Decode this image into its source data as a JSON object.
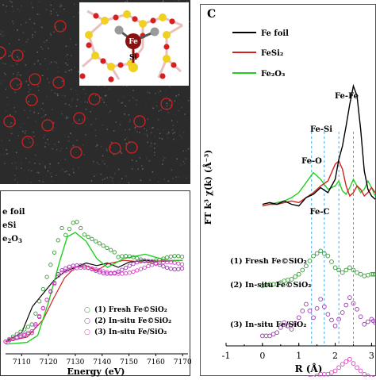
{
  "stem_image": {
    "inset_labels": {
      "fe": "Fe",
      "si": "Si"
    }
  },
  "xanes": {
    "legend_top": [
      "e foil",
      "eSi",
      "e",
      "2",
      "O",
      "3"
    ],
    "legend_bottom": [
      {
        "marker": "○",
        "label": "(1) Fresh Fe©SiO₂",
        "color": "#3a9a3a"
      },
      {
        "marker": "○",
        "label": "(2) In-situ Fe©SiO₂",
        "color": "#9a3ab0"
      },
      {
        "marker": "○",
        "label": "(3) In-situ Fe/SiO₂",
        "color": "#e040c8"
      }
    ],
    "xlabel": "Energy (eV)",
    "xticks": [
      "7110",
      "7120",
      "7130",
      "7140",
      "7150",
      "7160",
      "7170"
    ]
  },
  "chart_data": {
    "type": "line",
    "panel_letter": "C",
    "ylabel": "FT k³ χ(k) (Å⁻³)",
    "xlabel": "R (Å)",
    "xlim": [
      -1,
      3.1
    ],
    "xticks": [
      "-1",
      "0",
      "1",
      "2",
      "3"
    ],
    "legend": [
      {
        "name": "Fe foil",
        "color": "#000000"
      },
      {
        "name": "FeSi₂",
        "color": "#d62020"
      },
      {
        "name": "Fe₂O₃",
        "color": "#20d020"
      }
    ],
    "annotations": [
      "Fe-Fe",
      "Fe-Si",
      "Fe-O",
      "Fe-C"
    ],
    "reference_lines_R": [
      1.35,
      1.7,
      2.1,
      2.5
    ],
    "series": [
      {
        "name": "Fe foil",
        "color": "#000000",
        "offset": 0,
        "style": "line",
        "x": [
          0,
          0.2,
          0.4,
          0.6,
          0.8,
          1.0,
          1.2,
          1.4,
          1.6,
          1.8,
          2.0,
          2.1,
          2.2,
          2.3,
          2.4,
          2.5,
          2.6,
          2.7,
          2.8,
          2.9,
          3.0,
          3.1
        ],
        "y": [
          0.5,
          0.6,
          0.5,
          0.7,
          0.5,
          0.4,
          0.9,
          1.1,
          1.5,
          1.2,
          2.0,
          3.2,
          4.0,
          5.2,
          6.5,
          7.6,
          7.0,
          5.0,
          2.5,
          1.4,
          1.0,
          0.8
        ]
      },
      {
        "name": "FeSi₂",
        "color": "#d62020",
        "offset": 0,
        "style": "line",
        "x": [
          0,
          0.2,
          0.4,
          0.6,
          0.8,
          1.0,
          1.2,
          1.4,
          1.6,
          1.8,
          2.0,
          2.1,
          2.2,
          2.3,
          2.4,
          2.5,
          2.6,
          2.7,
          2.8,
          2.9,
          3.0,
          3.1
        ],
        "y": [
          0.4,
          0.5,
          0.5,
          0.6,
          0.7,
          0.6,
          0.9,
          1.2,
          1.6,
          1.9,
          2.9,
          3.1,
          2.6,
          1.6,
          1.0,
          1.2,
          1.6,
          1.4,
          1.0,
          1.2,
          1.5,
          1.2
        ]
      },
      {
        "name": "Fe₂O₃",
        "color": "#20d020",
        "offset": 0,
        "style": "line",
        "x": [
          0,
          0.2,
          0.4,
          0.6,
          0.8,
          1.0,
          1.2,
          1.4,
          1.6,
          1.8,
          2.0,
          2.1,
          2.2,
          2.3,
          2.4,
          2.5,
          2.6,
          2.7,
          2.8,
          2.9,
          3.0,
          3.1
        ],
        "y": [
          0.4,
          0.5,
          0.6,
          0.7,
          0.9,
          1.2,
          1.8,
          2.4,
          2.0,
          1.4,
          1.6,
          1.9,
          1.3,
          1.1,
          1.5,
          2.0,
          1.6,
          1.2,
          1.4,
          1.9,
          1.5,
          1.0
        ]
      },
      {
        "name": "(1) Fresh Fe©SiO₂",
        "color": "#3a9a3a",
        "offset": -4.6,
        "style": "markers",
        "x": [
          0,
          0.2,
          0.4,
          0.6,
          0.8,
          1.0,
          1.2,
          1.4,
          1.6,
          1.8,
          2.0,
          2.2,
          2.4,
          2.6,
          2.8,
          3.0,
          3.1
        ],
        "y": [
          0.2,
          0.3,
          0.3,
          0.5,
          0.6,
          0.9,
          1.4,
          2.0,
          2.3,
          2.0,
          1.3,
          1.0,
          1.3,
          1.0,
          0.8,
          0.9,
          0.9
        ]
      },
      {
        "name": "(2) In-situ Fe©SiO₂",
        "color": "#9a3ab0",
        "offset": -7.6,
        "style": "markers",
        "x": [
          0,
          0.2,
          0.4,
          0.6,
          0.8,
          1.0,
          1.2,
          1.4,
          1.6,
          1.8,
          2.0,
          2.2,
          2.4,
          2.6,
          2.8,
          3.0,
          3.1
        ],
        "y": [
          0.2,
          0.2,
          0.4,
          1.0,
          0.6,
          1.3,
          2.1,
          1.3,
          2.4,
          1.5,
          0.8,
          1.6,
          2.5,
          1.8,
          0.9,
          1.2,
          1.0
        ]
      },
      {
        "name": "(3) In-situ Fe/SiO₂",
        "color": "#e040c8",
        "offset": -10.3,
        "style": "markers",
        "x": [
          0,
          0.2,
          0.4,
          0.6,
          0.8,
          1.0,
          1.2,
          1.4,
          1.6,
          1.8,
          2.0,
          2.2,
          2.4,
          2.6,
          2.8,
          3.0,
          3.1
        ],
        "y": [
          0.1,
          0.1,
          0.1,
          0.1,
          0.2,
          0.2,
          0.3,
          0.4,
          0.6,
          0.6,
          0.8,
          1.2,
          1.5,
          1.0,
          0.6,
          0.4,
          0.3
        ]
      }
    ],
    "curve_labels": [
      "(1) Fresh Fe©SiO₂",
      "(2) In-situ Fe©SiO₂",
      "(3) In-situ Fe/SiO₂"
    ]
  }
}
